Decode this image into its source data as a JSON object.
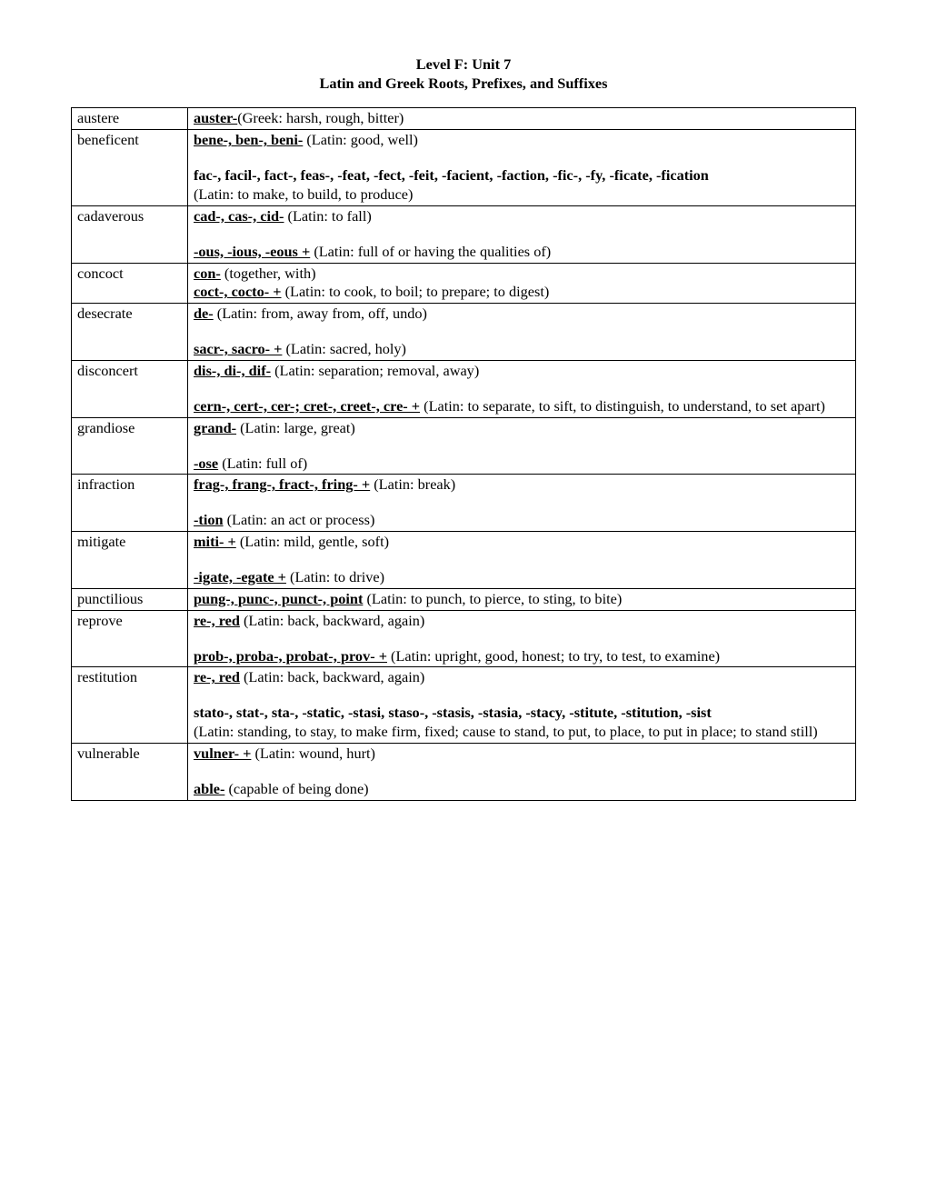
{
  "title1": "Level F: Unit 7",
  "title2": "Latin and Greek Roots, Prefixes, and Suffixes",
  "rows": {
    "austere": {
      "word": "austere",
      "r1": "auster-",
      "m1": "(Greek: harsh, rough, bitter)"
    },
    "beneficent": {
      "word": "beneficent",
      "r1": "bene-, ben-, beni-",
      "m1": " (Latin: good, well)",
      "r2": "fac-, facil-, fact-, feas-, -feat, -fect, -feit, -facient, -faction, -fic-, -fy, -ficate, -fication",
      "m2": "(Latin: to make, to build, to produce)"
    },
    "cadaverous": {
      "word": "cadaverous",
      "r1": "cad-, cas-, cid-",
      "m1": " (Latin: to fall)",
      "r2": "-ous, -ious, -eous +",
      "m2": " (Latin: full of or having the qualities of)"
    },
    "concoct": {
      "word": "concoct",
      "r1": "con-",
      "m1": " (together, with)",
      "r2": "coct-, cocto- +",
      "m2": " (Latin: to cook, to boil; to prepare; to digest)"
    },
    "desecrate": {
      "word": "desecrate",
      "r1": "de-",
      "m1": " (Latin: from, away from, off, undo)",
      "r2": "sacr-, sacro- +",
      "m2": " (Latin: sacred, holy)"
    },
    "disconcert": {
      "word": "disconcert",
      "r1": "dis-, di-, dif-",
      "m1": " (Latin: separation; removal, away)",
      "r2": "cern-, cert-, cer-; cret-, creet-, cre- +",
      "m2": " (Latin: to separate, to sift, to distinguish, to understand, to set apart)"
    },
    "grandiose": {
      "word": "grandiose",
      "r1": "grand-",
      "m1": " (Latin: large, great)",
      "r2": "-ose",
      "m2": " (Latin: full of)"
    },
    "infraction": {
      "word": "infraction",
      "r1": "frag-, frang-, fract-, fring- +",
      "m1": " (Latin: break)",
      "r2": "-tion",
      "m2": " (Latin: an act or process)"
    },
    "mitigate": {
      "word": "mitigate",
      "r1": "miti- +",
      "m1": " (Latin: mild, gentle, soft)",
      "r2": "-igate, -egate +",
      "m2": " (Latin: to drive)"
    },
    "punctilious": {
      "word": "punctilious",
      "r1": "pung-, punc-, punct-, point",
      "m1": " (Latin: to punch, to pierce, to sting, to bite)"
    },
    "reprove": {
      "word": "reprove",
      "r1": "re-, red",
      "m1": " (Latin: back, backward, again)",
      "r2": "prob-, proba-, probat-, prov- +",
      "m2": " (Latin: upright, good, honest; to try, to test, to examine)"
    },
    "restitution": {
      "word": "restitution",
      "r1": "re-, red",
      "m1": " (Latin: back, backward, again)",
      "r2": "stato-, stat-, sta-, -static, -stasi, staso-, -stasis, -stasia, -stacy, -stitute, -stitution, -sist",
      "m2": "(Latin: standing, to stay, to make firm, fixed; cause to stand, to put, to place, to put in place; to stand still)"
    },
    "vulnerable": {
      "word": "vulnerable",
      "r1": "vulner- +",
      "m1": " (Latin: wound, hurt)",
      "r2": "able-",
      "m2": " (capable of being done)"
    }
  }
}
